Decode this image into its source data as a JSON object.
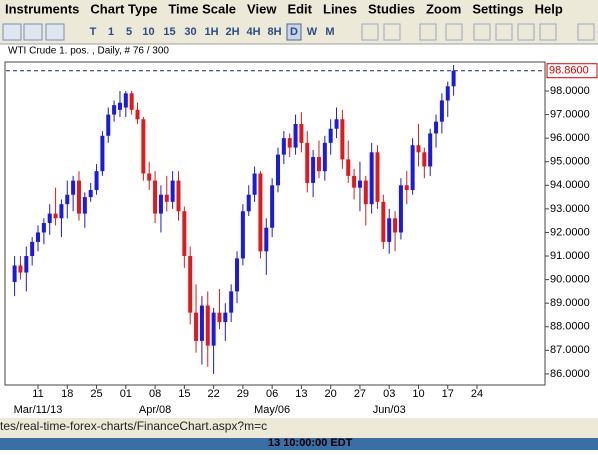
{
  "menu": [
    "Instruments",
    "Chart Type",
    "Time Scale",
    "View",
    "Edit",
    "Lines",
    "Studies",
    "Zoom",
    "Settings",
    "Help"
  ],
  "toolbar": {
    "timeframes": [
      "T",
      "1",
      "5",
      "10",
      "15",
      "30",
      "1H",
      "2H",
      "4H",
      "8H",
      "D",
      "W",
      "M"
    ],
    "active": "D"
  },
  "chart_data": {
    "type": "candlestick",
    "title": "WTI Crude 1. pos. , Daily, # 76 / 300",
    "categories": [
      null,
      null,
      null,
      null,
      "11",
      null,
      null,
      null,
      null,
      "18",
      null,
      null,
      null,
      null,
      "25",
      null,
      null,
      null,
      null,
      "01",
      null,
      null,
      null,
      null,
      "08",
      null,
      null,
      null,
      null,
      "15",
      null,
      null,
      null,
      null,
      "22",
      null,
      null,
      null,
      null,
      "29",
      null,
      null,
      null,
      null,
      "06",
      null,
      null,
      null,
      null,
      "13",
      null,
      null,
      null,
      null,
      "20",
      null,
      null,
      null,
      null,
      "27",
      null,
      null,
      null,
      null,
      "03",
      null,
      null,
      null,
      null,
      "10",
      null,
      null,
      null,
      null,
      "17",
      null,
      null,
      null,
      null,
      "24"
    ],
    "month_labels": [
      null,
      null,
      null,
      null,
      "Mar/11/13",
      null,
      null,
      null,
      null,
      null,
      null,
      null,
      null,
      null,
      null,
      null,
      null,
      null,
      null,
      null,
      null,
      null,
      null,
      null,
      "Apr/08",
      null,
      null,
      null,
      null,
      null,
      null,
      null,
      null,
      null,
      null,
      null,
      null,
      null,
      null,
      null,
      null,
      null,
      null,
      null,
      "May/06",
      null,
      null,
      null,
      null,
      null,
      null,
      null,
      null,
      null,
      null,
      null,
      null,
      null,
      null,
      null,
      null,
      null,
      null,
      null,
      "Jun/03",
      null,
      null,
      null,
      null,
      null,
      null,
      null,
      null,
      null,
      null,
      null,
      null,
      null,
      null,
      null
    ],
    "open": [
      89.9,
      90.6,
      90.3,
      91.0,
      91.6,
      92.0,
      92.4,
      92.8,
      92.6,
      93.2,
      93.6,
      94.2,
      92.8,
      93.5,
      93.8,
      94.6,
      96.1,
      97.0,
      97.2,
      97.3,
      97.9,
      97.2,
      96.8,
      94.5,
      94.2,
      92.8,
      93.6,
      93.3,
      94.2,
      92.9,
      91.0,
      88.6,
      87.4,
      88.9,
      87.2,
      88.6,
      88.2,
      88.6,
      89.5,
      90.9,
      92.9,
      93.6,
      94.5,
      91.2,
      92.2,
      94.0,
      95.3,
      96.0,
      95.6,
      96.6,
      95.8,
      94.1,
      95.2,
      94.6,
      95.8,
      96.4,
      96.8,
      95.1,
      94.4,
      93.9,
      94.2,
      93.2,
      95.4,
      93.3,
      91.6,
      92.6,
      92.0,
      94.0,
      93.8,
      95.7,
      95.4,
      94.8,
      96.2,
      96.7,
      97.6,
      98.2,
      null,
      null,
      null,
      null
    ],
    "high": [
      91.0,
      91.0,
      91.4,
      91.8,
      92.3,
      92.6,
      93.2,
      93.9,
      93.4,
      94.2,
      94.4,
      94.6,
      93.7,
      94.1,
      94.9,
      96.3,
      97.3,
      97.6,
      98.0,
      98.0,
      98.0,
      97.5,
      96.9,
      95.0,
      94.6,
      94.0,
      94.4,
      94.6,
      94.6,
      93.1,
      91.4,
      89.8,
      89.3,
      89.5,
      88.8,
      89.6,
      89.0,
      89.8,
      91.2,
      93.2,
      94.0,
      94.8,
      94.6,
      92.6,
      94.3,
      95.6,
      96.3,
      96.2,
      97.0,
      97.1,
      96.3,
      95.5,
      95.9,
      96.1,
      96.8,
      97.3,
      97.2,
      95.9,
      94.7,
      95.0,
      94.4,
      95.8,
      95.7,
      93.6,
      93.0,
      92.9,
      94.3,
      94.6,
      96.0,
      96.6,
      95.6,
      96.4,
      97.0,
      97.9,
      98.4,
      99.1,
      null,
      null,
      null,
      null
    ],
    "low": [
      89.3,
      90.0,
      89.5,
      90.6,
      91.2,
      91.5,
      91.9,
      92.3,
      91.8,
      92.6,
      92.9,
      92.5,
      92.2,
      93.3,
      93.6,
      94.4,
      95.8,
      96.7,
      96.9,
      96.9,
      97.0,
      96.6,
      94.2,
      93.8,
      92.4,
      92.0,
      92.9,
      93.0,
      92.5,
      90.5,
      88.1,
      86.9,
      86.4,
      86.3,
      86.0,
      87.9,
      87.4,
      88.2,
      89.0,
      90.6,
      92.7,
      93.3,
      90.9,
      90.2,
      91.8,
      93.7,
      94.9,
      95.2,
      95.3,
      95.4,
      93.7,
      93.5,
      94.3,
      94.2,
      95.3,
      96.0,
      94.7,
      94.1,
      93.4,
      92.9,
      92.3,
      92.8,
      93.0,
      91.3,
      91.1,
      91.2,
      91.7,
      93.2,
      93.6,
      94.8,
      94.3,
      94.4,
      95.6,
      96.2,
      96.9,
      97.8,
      null,
      null,
      null,
      null
    ],
    "close": [
      90.6,
      90.3,
      91.0,
      91.6,
      92.0,
      92.4,
      92.8,
      92.6,
      93.2,
      93.6,
      94.2,
      92.8,
      93.5,
      93.8,
      94.6,
      96.1,
      97.0,
      97.4,
      97.5,
      97.9,
      97.2,
      96.8,
      94.5,
      94.2,
      92.8,
      93.6,
      93.3,
      94.2,
      92.9,
      91.0,
      88.6,
      87.4,
      88.9,
      87.2,
      88.6,
      88.2,
      88.6,
      89.5,
      90.9,
      92.9,
      93.6,
      94.5,
      91.2,
      92.2,
      94.0,
      95.3,
      96.0,
      95.6,
      96.6,
      95.8,
      94.1,
      95.2,
      94.6,
      95.8,
      96.4,
      96.8,
      95.1,
      94.4,
      93.9,
      94.2,
      93.2,
      95.4,
      93.3,
      91.6,
      92.6,
      92.0,
      94.0,
      93.8,
      95.7,
      95.4,
      94.8,
      96.2,
      96.7,
      97.6,
      98.2,
      98.86,
      null,
      null,
      null,
      null
    ],
    "up_color": "#1a1ae0",
    "down_color": "#e01a1a",
    "ylim": [
      85.53,
      99.23
    ],
    "yticks": [
      {
        "value": 86,
        "label": "86.0000"
      },
      {
        "value": 87,
        "label": "87.0000"
      },
      {
        "value": 88,
        "label": "88.0000"
      },
      {
        "value": 89,
        "label": "89.0000"
      },
      {
        "value": 90,
        "label": "90.0000"
      },
      {
        "value": 91,
        "label": "91.0000"
      },
      {
        "value": 92,
        "label": "92.0000"
      },
      {
        "value": 93,
        "label": "93.0000"
      },
      {
        "value": 94,
        "label": "94.0000"
      },
      {
        "value": 95,
        "label": "95.0000"
      },
      {
        "value": 96,
        "label": "96.0000"
      },
      {
        "value": 97,
        "label": "97.0000"
      },
      {
        "value": 98,
        "label": "98.0000"
      }
    ],
    "last_price": {
      "value": 98.86,
      "label": "98.8600"
    }
  },
  "status_bar": {
    "url": "tes/real-time-forex-charts/FinanceChart.aspx?m=c",
    "time": "13 10:00:00 EDT"
  }
}
